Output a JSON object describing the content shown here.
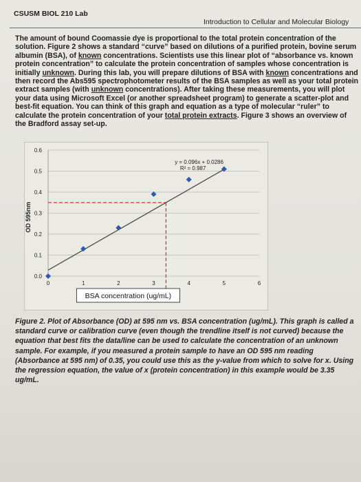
{
  "header": {
    "course": "CSUSM BIOL 210 Lab",
    "title": "Introduction to Cellular and Molecular Biology"
  },
  "intro_paragraph": {
    "p1": "The amount of bound Coomassie dye is proportional to the total protein concentration of the solution. Figure 2 shows a standard “curve” based on dilutions of a purified protein, bovine serum albumin (BSA), of ",
    "u1": "known",
    "p2": " concentrations. Scientists use this linear plot of “absorbance vs. known protein concentration” to calculate the protein concentration of samples whose concentration is initially ",
    "u2": "unknown",
    "p3": ". During this lab, you will prepare dilutions of BSA with ",
    "u3": "known",
    "p4": " concentrations and then record the Abs595 spectrophotometer results of the BSA samples as well as your total protein extract samples (with ",
    "u4": "unknown",
    "p5": " concentrations). After taking these measurements, you will plot your data using Microsoft Excel (or another spreadsheet program) to generate a scatter-plot and best-fit equation. You can think of this graph and equation as a type of molecular “ruler” to calculate the protein concentration of your ",
    "u5": "total protein extracts",
    "p6": ". Figure 3 shows an overview of the Bradford assay set-up."
  },
  "chart_data": {
    "type": "scatter",
    "xlabel": "BSA concentration (ug/mL)",
    "ylabel": "OD 595nm",
    "x_ticks": [
      "0",
      "1",
      "2",
      "3",
      "4",
      "5",
      "6"
    ],
    "y_ticks": [
      "0.0",
      "0.1",
      "0.2",
      "0.3",
      "0.4",
      "0.5",
      "0.6"
    ],
    "xlim": [
      0,
      6
    ],
    "ylim": [
      0,
      0.6
    ],
    "grid": true,
    "points": [
      {
        "x": 0,
        "y": 0
      },
      {
        "x": 1,
        "y": 0.13
      },
      {
        "x": 2,
        "y": 0.23
      },
      {
        "x": 3,
        "y": 0.39
      },
      {
        "x": 4,
        "y": 0.46
      },
      {
        "x": 5,
        "y": 0.51
      }
    ],
    "trendline": {
      "slope": 0.096,
      "intercept": 0.0286
    },
    "equation": "y = 0.096x + 0.0286",
    "r_squared": "R² = 0.987",
    "reference": {
      "y": 0.35,
      "x": 3.35,
      "color": "#d23a33"
    },
    "marker_color": "#2f5aa8",
    "line_color": "#4a4a4a"
  },
  "caption": "Figure 2. Plot of Absorbance (OD) at 595 nm vs. BSA concentration (ug/mL). This graph is called a standard curve or calibration curve (even though the trendline itself is not curved) because the equation that best fits the data/line can be used to calculate the concentration of an unknown sample. For example, if you measured a protein sample to have an OD 595 nm reading (Absorbance at 595 nm) of 0.35, you could use this as the y-value from which to solve for x. Using the regression equation, the value of x (protein concentration) in this example would be 3.35 ug/mL."
}
